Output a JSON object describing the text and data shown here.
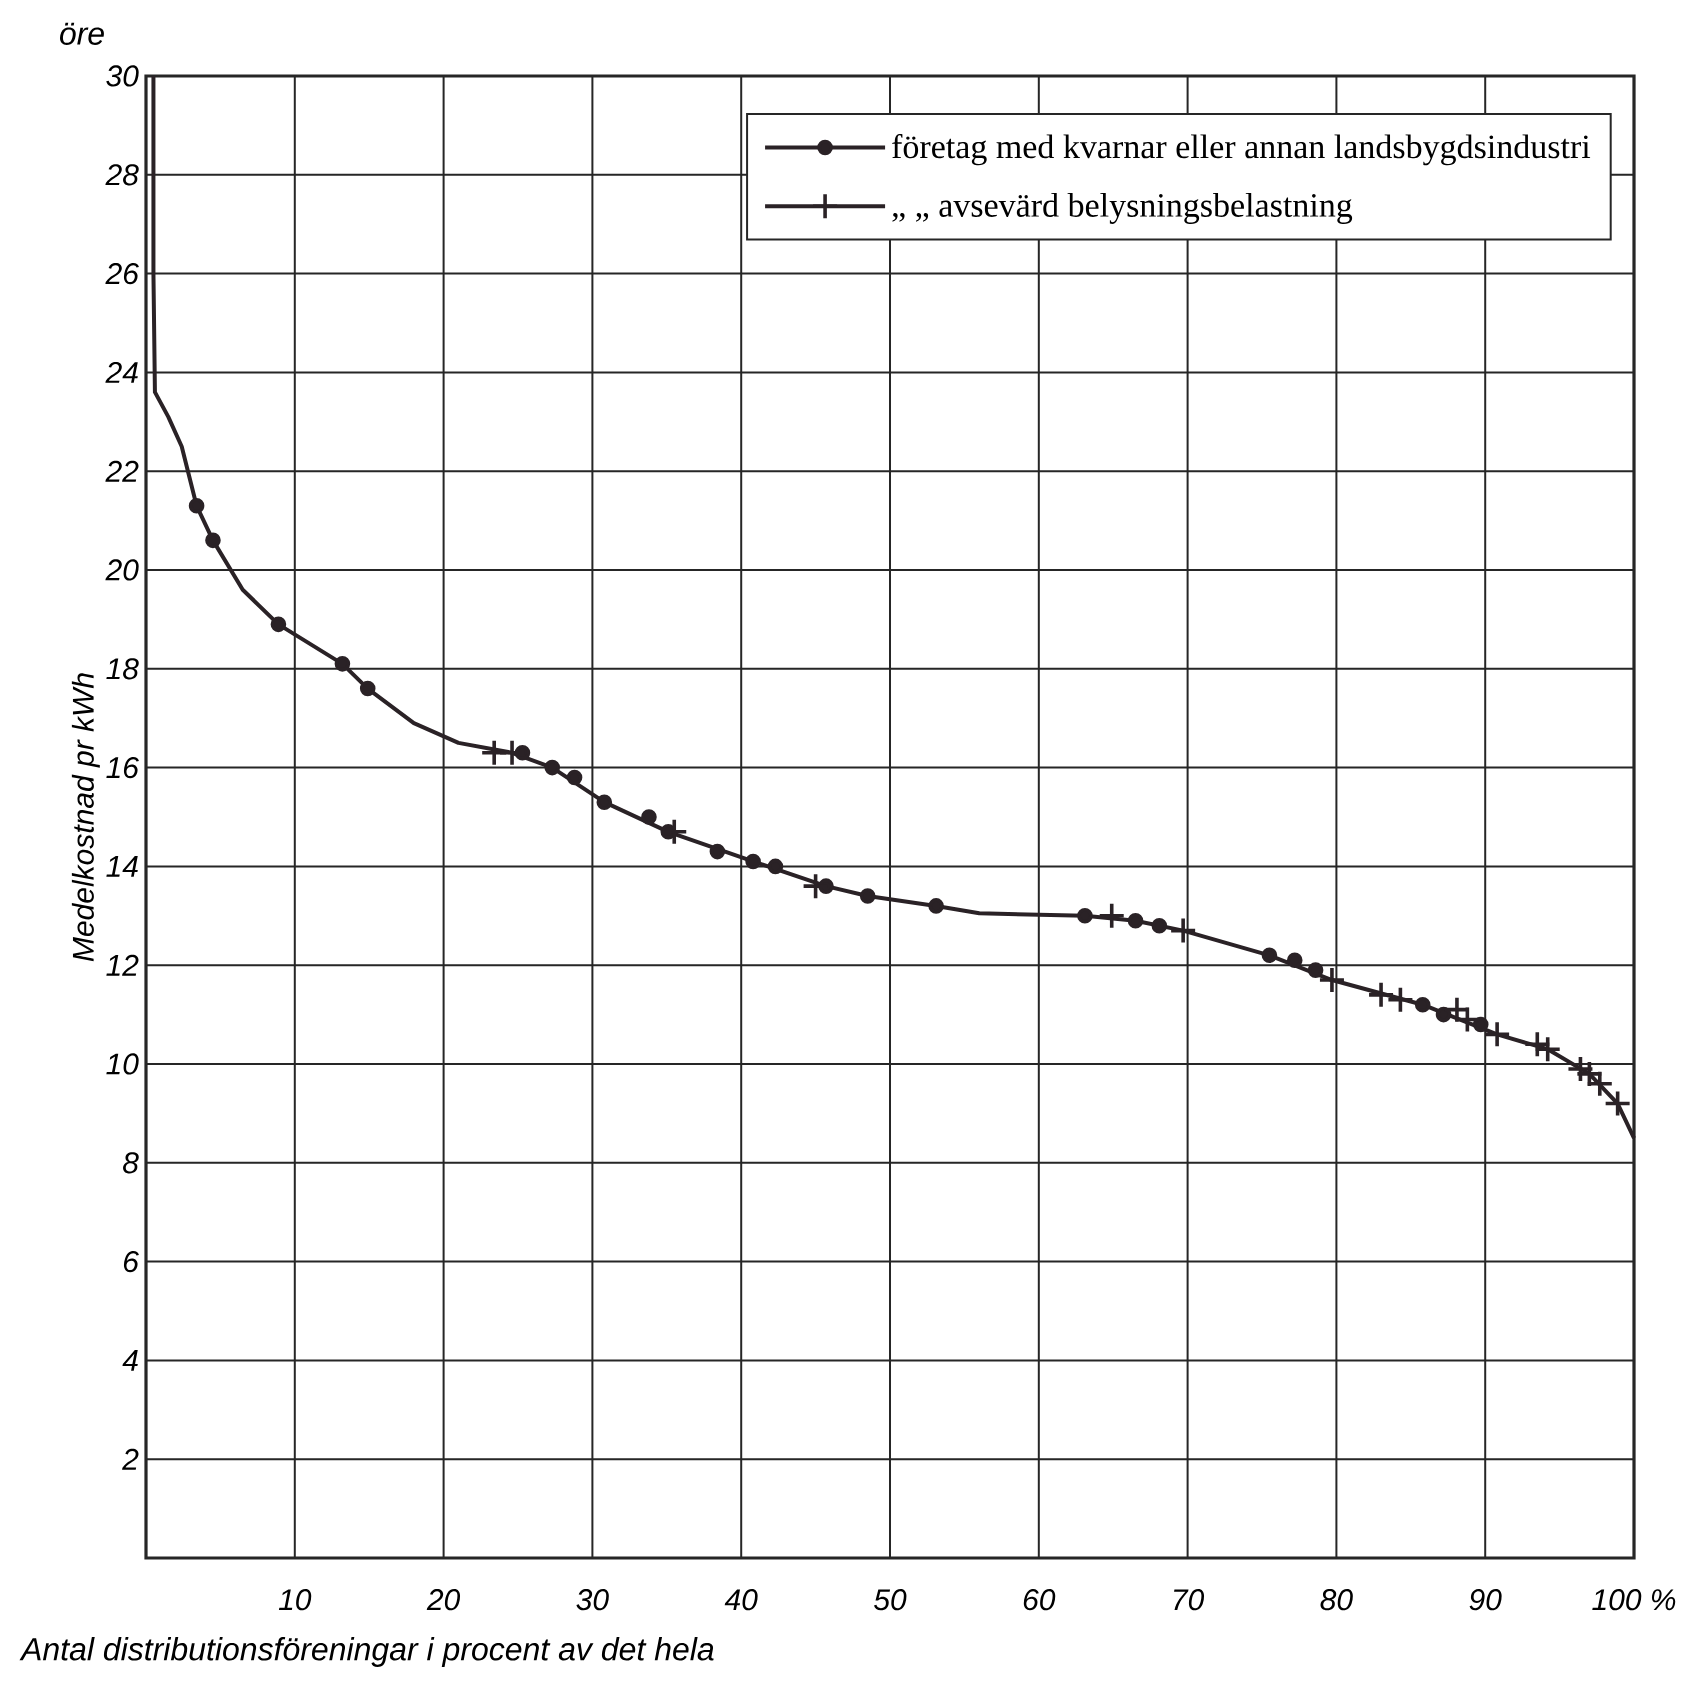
{
  "chart_data": {
    "type": "line",
    "xlabel": "Antal distributionsföreningar i procent av det hela",
    "ylabel": "Medelkostnad pr kWh",
    "annotations": [
      "öre"
    ],
    "xlim": [
      0,
      100
    ],
    "ylim": [
      0,
      30
    ],
    "xticks": [
      10,
      20,
      30,
      40,
      50,
      60,
      70,
      80,
      90,
      {
        "value": 100,
        "label": "100 %"
      }
    ],
    "yticks": [
      2,
      4,
      6,
      8,
      10,
      12,
      14,
      16,
      18,
      20,
      22,
      24,
      26,
      28,
      30
    ],
    "grid": true,
    "legend": "top right",
    "series": [
      {
        "color": "#2a2226",
        "marker": "none",
        "line_style": "solid",
        "x": [
          0.5,
          0.5,
          0.6,
          1.5,
          2.4,
          3.4,
          4.5,
          6.5,
          8.9,
          13.2,
          14.9,
          18,
          21,
          24.6,
          27.3,
          30.8,
          35.1,
          40.8,
          45.7,
          48.5,
          53.1,
          56,
          63.1,
          66.5,
          69.7,
          75.5,
          79.7,
          85.8,
          90.8,
          94.2,
          97.0,
          98.9,
          100
        ],
        "values": [
          30,
          26,
          23.6,
          23.1,
          22.5,
          21.3,
          20.6,
          19.6,
          18.9,
          18.1,
          17.6,
          16.9,
          16.5,
          16.3,
          16.0,
          15.3,
          14.7,
          14.1,
          13.6,
          13.4,
          13.2,
          13.05,
          13.0,
          12.9,
          12.7,
          12.2,
          11.7,
          11.2,
          10.6,
          10.3,
          9.8,
          9.2,
          8.5
        ]
      },
      {
        "type": "scatter",
        "name": "företag med kvarnar eller annan landsbygdsindustri",
        "color": "#2a2226",
        "marker": "circle",
        "x": [
          3.4,
          4.5,
          8.9,
          13.2,
          14.9,
          25.3,
          27.3,
          28.8,
          30.8,
          33.8,
          35.1,
          38.4,
          40.8,
          42.3,
          45.7,
          48.5,
          53.1,
          63.1,
          66.5,
          68.1,
          75.5,
          77.2,
          78.6,
          85.8,
          87.2,
          89.7
        ],
        "values": [
          21.3,
          20.6,
          18.9,
          18.1,
          17.6,
          16.3,
          16.0,
          15.8,
          15.3,
          15.0,
          14.7,
          14.3,
          14.1,
          14.0,
          13.6,
          13.4,
          13.2,
          13.0,
          12.9,
          12.8,
          12.2,
          12.1,
          11.9,
          11.2,
          11.0,
          10.8
        ]
      },
      {
        "type": "scatter",
        "name": "„     „  avsevärd belysningsbelastning",
        "color": "#2a2226",
        "marker": "cross",
        "x": [
          23.4,
          24.6,
          35.5,
          45.0,
          64.9,
          69.7,
          79.7,
          83.0,
          84.3,
          88.1,
          88.8,
          90.8,
          93.5,
          94.2,
          96.4,
          97.0,
          97.7,
          98.9
        ],
        "values": [
          16.3,
          16.3,
          14.7,
          13.6,
          13.0,
          12.7,
          11.7,
          11.4,
          11.3,
          11.1,
          10.9,
          10.6,
          10.4,
          10.3,
          9.9,
          9.8,
          9.6,
          9.2
        ]
      }
    ]
  }
}
